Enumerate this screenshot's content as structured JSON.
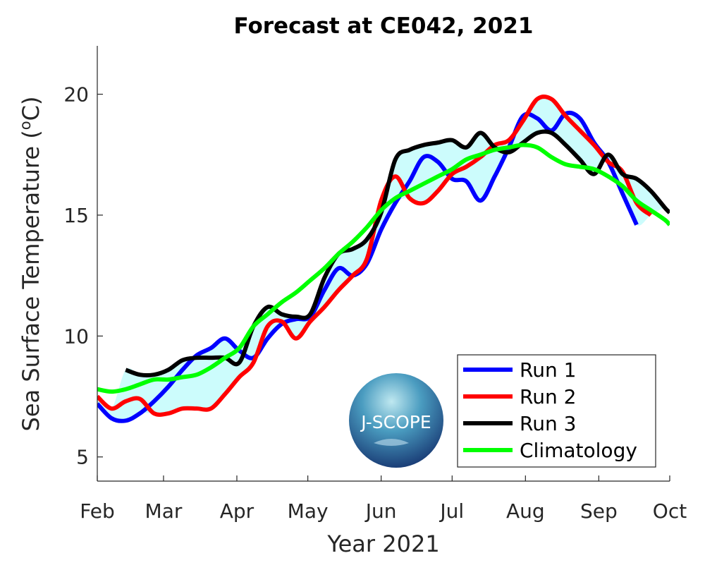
{
  "chart_data": {
    "type": "line",
    "title": "Forecast at CE042, 2021",
    "xlabel": "Year 2021",
    "ylabel_parts": [
      "Sea Surface Temperature (",
      "o",
      "C)"
    ],
    "xlim": [
      "2021-02-01",
      "2021-10-01"
    ],
    "ylim": [
      4,
      22
    ],
    "yticks": [
      5,
      10,
      15,
      20
    ],
    "xticks": [
      {
        "date": "2021-02-01",
        "label": "Feb"
      },
      {
        "date": "2021-03-01",
        "label": "Mar"
      },
      {
        "date": "2021-04-01",
        "label": "Apr"
      },
      {
        "date": "2021-05-01",
        "label": "May"
      },
      {
        "date": "2021-06-01",
        "label": "Jun"
      },
      {
        "date": "2021-07-01",
        "label": "Jul"
      },
      {
        "date": "2021-08-01",
        "label": "Aug"
      },
      {
        "date": "2021-09-01",
        "label": "Sep"
      },
      {
        "date": "2021-10-01",
        "label": "Oct"
      }
    ],
    "grid": false,
    "legend_position": "bottom-right",
    "envelope_color": "#ccfcfc",
    "x": [
      "2021-02-01",
      "2021-02-07",
      "2021-02-13",
      "2021-02-19",
      "2021-02-25",
      "2021-03-03",
      "2021-03-09",
      "2021-03-15",
      "2021-03-21",
      "2021-03-27",
      "2021-04-02",
      "2021-04-08",
      "2021-04-14",
      "2021-04-20",
      "2021-04-26",
      "2021-05-02",
      "2021-05-08",
      "2021-05-14",
      "2021-05-20",
      "2021-05-26",
      "2021-06-01",
      "2021-06-07",
      "2021-06-13",
      "2021-06-19",
      "2021-06-25",
      "2021-07-01",
      "2021-07-07",
      "2021-07-13",
      "2021-07-19",
      "2021-07-25",
      "2021-07-31",
      "2021-08-06",
      "2021-08-12",
      "2021-08-18",
      "2021-08-24",
      "2021-08-30",
      "2021-09-05",
      "2021-09-11",
      "2021-09-17",
      "2021-09-23",
      "2021-09-29",
      "2021-10-01"
    ],
    "series": [
      {
        "name": "Run 1",
        "color": "#0000ff",
        "envelope": true,
        "values": [
          7.2,
          6.6,
          6.5,
          6.8,
          7.3,
          7.9,
          8.6,
          9.2,
          9.5,
          9.9,
          9.4,
          9.1,
          9.9,
          10.5,
          10.7,
          10.8,
          11.9,
          12.8,
          12.5,
          13.0,
          14.4,
          15.5,
          16.4,
          17.4,
          17.2,
          16.5,
          16.4,
          15.6,
          16.6,
          17.8,
          19.1,
          19.0,
          18.5,
          19.2,
          19.0,
          18.0,
          17.2,
          15.9,
          14.6,
          null,
          null,
          null
        ]
      },
      {
        "name": "Run 2",
        "color": "#ff0000",
        "envelope": true,
        "values": [
          7.5,
          7.0,
          7.3,
          7.4,
          6.8,
          6.8,
          7.0,
          7.0,
          7.0,
          7.6,
          8.3,
          8.9,
          10.4,
          10.6,
          9.9,
          10.6,
          11.2,
          11.9,
          12.5,
          13.2,
          15.6,
          16.6,
          15.7,
          15.5,
          16.0,
          16.7,
          17.0,
          17.4,
          17.9,
          18.1,
          18.9,
          19.8,
          19.8,
          19.1,
          18.5,
          17.9,
          17.2,
          16.8,
          15.5,
          15.0,
          null,
          null
        ]
      },
      {
        "name": "Run 3",
        "color": "#000000",
        "envelope": true,
        "values": [
          null,
          null,
          8.6,
          8.4,
          8.4,
          8.6,
          9.0,
          9.1,
          9.1,
          9.1,
          8.9,
          10.4,
          11.2,
          10.9,
          10.8,
          10.9,
          12.4,
          13.4,
          13.6,
          14.0,
          15.1,
          17.3,
          17.7,
          17.9,
          18.0,
          18.1,
          17.8,
          18.4,
          17.8,
          17.6,
          18.0,
          18.4,
          18.4,
          17.9,
          17.3,
          16.7,
          17.5,
          16.7,
          16.5,
          16.0,
          15.3,
          15.1
        ]
      },
      {
        "name": "Climatology",
        "color": "#00ff00",
        "envelope": false,
        "values": [
          7.8,
          7.7,
          7.8,
          8.0,
          8.2,
          8.2,
          8.3,
          8.4,
          8.7,
          9.1,
          9.5,
          10.4,
          10.9,
          11.4,
          11.8,
          12.3,
          12.8,
          13.4,
          13.9,
          14.5,
          15.2,
          15.7,
          16.0,
          16.3,
          16.6,
          16.9,
          17.3,
          17.5,
          17.7,
          17.8,
          17.9,
          17.8,
          17.4,
          17.1,
          17.0,
          16.9,
          16.6,
          16.2,
          15.6,
          15.2,
          14.8,
          14.6
        ]
      }
    ]
  },
  "logo": {
    "text": "J-SCOPE"
  }
}
